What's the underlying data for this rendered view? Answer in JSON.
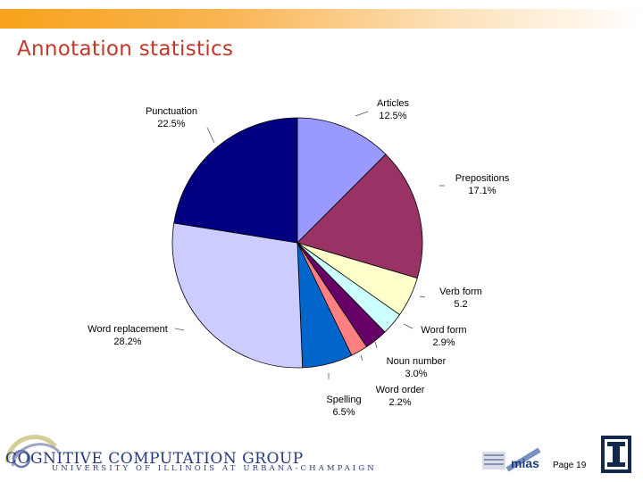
{
  "slide": {
    "title": "Annotation statistics",
    "page_label": "Page 19",
    "footer_brand": "COGNITIVE COMPUTATION GROUP",
    "footer_university": "UNIVERSITY OF ILLINOIS AT URBANA-CHAMPAIGN",
    "mias_logo_text": "mias"
  },
  "chart_data": {
    "type": "pie",
    "title": "",
    "start_angle_deg": 0,
    "direction": "clockwise",
    "slices": [
      {
        "label": "Articles",
        "value": 12.5,
        "value_label": "12.5%",
        "color": "#9999ff"
      },
      {
        "label": "Prepositions",
        "value": 17.1,
        "value_label": "17.1%",
        "color": "#993366"
      },
      {
        "label": "Verb form",
        "value": 5.2,
        "value_label": "5.2",
        "color": "#ffffcc"
      },
      {
        "label": "Word form",
        "value": 2.9,
        "value_label": "2.9%",
        "color": "#ccffff"
      },
      {
        "label": "Noun number",
        "value": 3.0,
        "value_label": "3.0%",
        "color": "#660066"
      },
      {
        "label": "Word order",
        "value": 2.2,
        "value_label": "2.2%",
        "color": "#ff8080"
      },
      {
        "label": "Spelling",
        "value": 6.5,
        "value_label": "6.5%",
        "color": "#0066cc"
      },
      {
        "label": "Word replacement",
        "value": 28.2,
        "value_label": "28.2%",
        "color": "#ccccff"
      },
      {
        "label": "Punctuation",
        "value": 22.5,
        "value_label": "22.5%",
        "color": "#000080"
      }
    ]
  }
}
